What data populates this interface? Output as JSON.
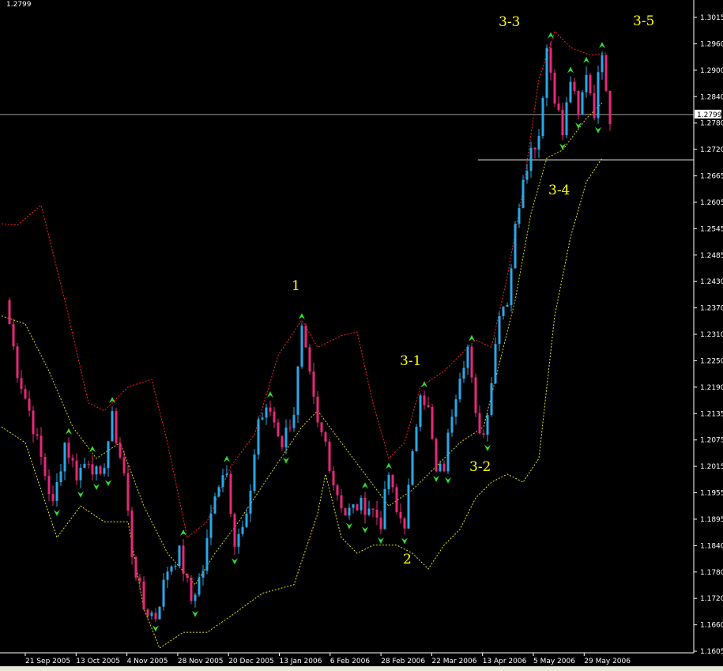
{
  "window": {
    "current_price_label": "1.2799"
  },
  "annotations": [
    "1",
    "2",
    "3-1",
    "3-2",
    "3-3",
    "3-4",
    "3-5"
  ],
  "colors": {
    "background": "#000000",
    "bull_candle": "#2aa8e8",
    "bear_candle": "#e8287a",
    "upper_band": "#ff2020",
    "middle_band": "#d8d800",
    "lower_band": "#e8e800",
    "fractal": "#30e030",
    "annotation": "#ffff00"
  },
  "chart_data": {
    "type": "candlestick",
    "title": "",
    "ylim": [
      1.1605,
      1.3015
    ],
    "y_ticks": [
      "1.3015",
      "1.2960",
      "1.2900",
      "1.2840",
      "1.2780",
      "1.2720",
      "1.2665",
      "1.2605",
      "1.2545",
      "1.2485",
      "1.2430",
      "1.2370",
      "1.2310",
      "1.2250",
      "1.2190",
      "1.2135",
      "1.2075",
      "1.2015",
      "1.1955",
      "1.1895",
      "1.1840",
      "1.1780",
      "1.1720",
      "1.1660",
      "1.1605"
    ],
    "x_ticks": [
      "2005",
      "21 Sep 2005",
      "13 Oct 2005",
      "4 Nov 2005",
      "28 Nov 2005",
      "20 Dec 2005",
      "13 Jan 2006",
      "6 Feb 2006",
      "28 Feb 2006",
      "22 Mar 2006",
      "13 Apr 2006",
      "5 May 2006",
      "29 May 2006"
    ],
    "current_price": 1.2799,
    "horizontal_line": 1.2698,
    "close_path": [
      [
        1,
        1.2386
      ],
      [
        4,
        1.2228
      ],
      [
        7,
        1.214
      ],
      [
        10,
        1.2034
      ],
      [
        13,
        1.1928
      ],
      [
        16,
        1.2069
      ],
      [
        19,
        1.1999
      ],
      [
        22,
        1.2034
      ],
      [
        25,
        1.1981
      ],
      [
        28,
        1.2121
      ],
      [
        31,
        1.1999
      ],
      [
        33,
        1.1823
      ],
      [
        36,
        1.17
      ],
      [
        39,
        1.1683
      ],
      [
        42,
        1.1788
      ],
      [
        45,
        1.1823
      ],
      [
        48,
        1.1718
      ],
      [
        51,
        1.1788
      ],
      [
        54,
        1.1964
      ],
      [
        57,
        1.2016
      ],
      [
        59,
        1.1841
      ],
      [
        62,
        1.1893
      ],
      [
        65,
        1.2121
      ],
      [
        68,
        1.214
      ],
      [
        71,
        1.2069
      ],
      [
        74,
        1.214
      ],
      [
        76,
        1.2315
      ],
      [
        78,
        1.221
      ],
      [
        80,
        1.2104
      ],
      [
        82,
        1.2069
      ],
      [
        84,
        1.1981
      ],
      [
        87,
        1.1911
      ],
      [
        90,
        1.1928
      ],
      [
        93,
        1.1928
      ],
      [
        96,
        1.1893
      ],
      [
        98,
        1.1999
      ],
      [
        100,
        1.1911
      ],
      [
        102,
        1.1893
      ],
      [
        104,
        1.2034
      ],
      [
        106,
        1.2193
      ],
      [
        108,
        1.214
      ],
      [
        110,
        1.1999
      ],
      [
        112,
        1.2016
      ],
      [
        114,
        1.214
      ],
      [
        116,
        1.2228
      ],
      [
        118,
        1.2281
      ],
      [
        120,
        1.2121
      ],
      [
        122,
        1.2087
      ],
      [
        124,
        1.221
      ],
      [
        126,
        1.2368
      ],
      [
        128,
        1.2386
      ],
      [
        130,
        1.2544
      ],
      [
        132,
        1.2667
      ],
      [
        134,
        1.272
      ],
      [
        136,
        1.2755
      ],
      [
        138,
        1.2948
      ],
      [
        140,
        1.2843
      ],
      [
        142,
        1.2755
      ],
      [
        144,
        1.2878
      ],
      [
        146,
        1.279
      ],
      [
        148,
        1.2896
      ],
      [
        150,
        1.2808
      ],
      [
        152,
        1.2948
      ],
      [
        154,
        1.279
      ]
    ],
    "upper_band": [
      [
        0,
        1.2556
      ],
      [
        4,
        1.2553
      ],
      [
        10,
        1.2597
      ],
      [
        16,
        1.2386
      ],
      [
        22,
        1.2157
      ],
      [
        26,
        1.214
      ],
      [
        32,
        1.2193
      ],
      [
        38,
        1.221
      ],
      [
        42,
        1.2069
      ],
      [
        47,
        1.1858
      ],
      [
        52,
        1.1893
      ],
      [
        58,
        1.2016
      ],
      [
        64,
        1.2087
      ],
      [
        70,
        1.2263
      ],
      [
        76,
        1.2342
      ],
      [
        80,
        1.2281
      ],
      [
        86,
        1.2307
      ],
      [
        90,
        1.2315
      ],
      [
        94,
        1.2157
      ],
      [
        98,
        1.2034
      ],
      [
        102,
        1.2069
      ],
      [
        106,
        1.2193
      ],
      [
        112,
        1.2228
      ],
      [
        116,
        1.2263
      ],
      [
        120,
        1.2298
      ],
      [
        124,
        1.2281
      ],
      [
        128,
        1.2438
      ],
      [
        132,
        1.2632
      ],
      [
        136,
        1.2878
      ],
      [
        140,
        1.2984
      ],
      [
        144,
        1.2948
      ],
      [
        149,
        1.2931
      ],
      [
        153,
        1.2936
      ]
    ],
    "middle_band": [
      [
        0,
        1.2351
      ],
      [
        6,
        1.2333
      ],
      [
        12,
        1.2228
      ],
      [
        18,
        1.2104
      ],
      [
        24,
        1.2034
      ],
      [
        30,
        1.2069
      ],
      [
        36,
        1.1928
      ],
      [
        42,
        1.1823
      ],
      [
        49,
        1.1753
      ],
      [
        54,
        1.1823
      ],
      [
        60,
        1.1893
      ],
      [
        68,
        1.1999
      ],
      [
        76,
        1.2104
      ],
      [
        80,
        1.214
      ],
      [
        86,
        1.2069
      ],
      [
        92,
        1.1999
      ],
      [
        98,
        1.1928
      ],
      [
        104,
        1.1964
      ],
      [
        110,
        1.2016
      ],
      [
        116,
        1.2069
      ],
      [
        122,
        1.2104
      ],
      [
        126,
        1.2245
      ],
      [
        130,
        1.2386
      ],
      [
        134,
        1.2579
      ],
      [
        138,
        1.2702
      ],
      [
        142,
        1.272
      ],
      [
        148,
        1.279
      ],
      [
        152,
        1.2825
      ]
    ],
    "lower_band": [
      [
        0,
        1.2104
      ],
      [
        6,
        1.2069
      ],
      [
        14,
        1.1858
      ],
      [
        20,
        1.1928
      ],
      [
        26,
        1.1893
      ],
      [
        32,
        1.1893
      ],
      [
        36,
        1.17
      ],
      [
        40,
        1.1612
      ],
      [
        46,
        1.1647
      ],
      [
        52,
        1.1647
      ],
      [
        58,
        1.1683
      ],
      [
        66,
        1.1734
      ],
      [
        74,
        1.1753
      ],
      [
        80,
        1.1911
      ],
      [
        82,
        1.1999
      ],
      [
        86,
        1.1858
      ],
      [
        90,
        1.1823
      ],
      [
        94,
        1.1841
      ],
      [
        100,
        1.1841
      ],
      [
        104,
        1.1823
      ],
      [
        108,
        1.1788
      ],
      [
        112,
        1.1841
      ],
      [
        116,
        1.1876
      ],
      [
        120,
        1.1946
      ],
      [
        124,
        1.1981
      ],
      [
        128,
        1.1999
      ],
      [
        132,
        1.1981
      ],
      [
        136,
        1.2034
      ],
      [
        140,
        1.2351
      ],
      [
        144,
        1.2526
      ],
      [
        148,
        1.2649
      ],
      [
        152,
        1.2702
      ]
    ]
  }
}
